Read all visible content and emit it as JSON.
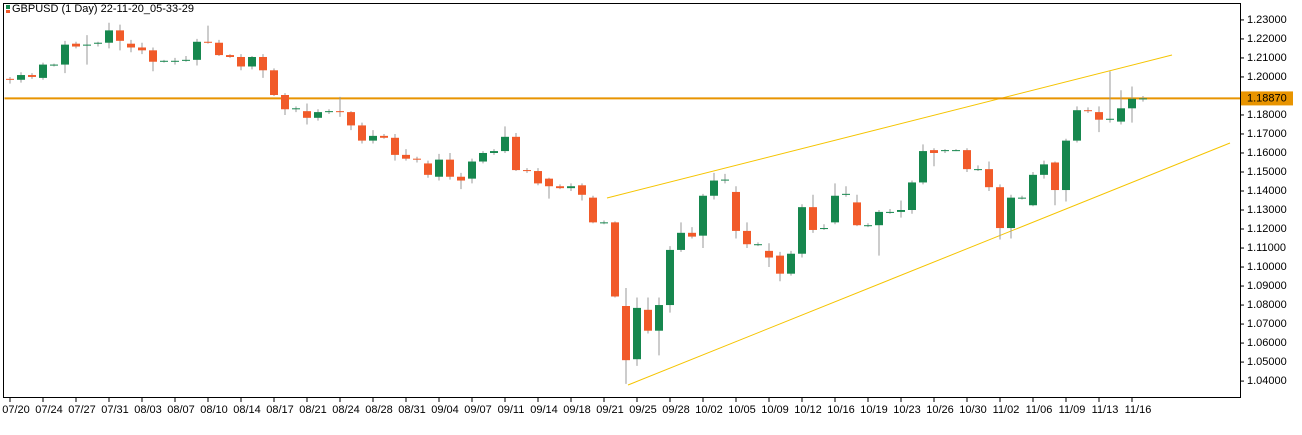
{
  "chart_data": {
    "type": "candlestick",
    "title": "GBPUSD (1 Day) 22-11-20_05-33-29",
    "categories": [
      "07/20",
      null,
      null,
      "07/24",
      null,
      null,
      "07/27",
      null,
      null,
      "07/31",
      null,
      null,
      "08/03",
      null,
      null,
      "08/07",
      null,
      null,
      "08/10",
      null,
      null,
      "08/14",
      null,
      null,
      "08/17",
      null,
      null,
      "08/21",
      null,
      null,
      "08/24",
      null,
      null,
      "08/28",
      null,
      null,
      "08/31",
      null,
      null,
      "09/04",
      null,
      null,
      "09/07",
      null,
      null,
      "09/11",
      null,
      null,
      "09/14",
      null,
      null,
      "09/18",
      null,
      null,
      "09/21",
      null,
      null,
      "09/25",
      null,
      null,
      "09/28",
      null,
      null,
      "10/02",
      null,
      null,
      "10/05",
      null,
      null,
      "10/09",
      null,
      null,
      "10/12",
      null,
      null,
      "10/16",
      null,
      null,
      "10/19",
      null,
      null,
      "10/23",
      null,
      null,
      "10/26",
      null,
      null,
      "10/30",
      null,
      null,
      "11/02",
      null,
      null,
      "11/06",
      null,
      null,
      "11/09",
      null,
      null,
      "11/13",
      null,
      null,
      "11/16",
      null
    ],
    "open": [
      1.199,
      1.1985,
      1.201,
      1.1995,
      1.2065,
      1.2065,
      1.2175,
      1.2165,
      1.2175,
      1.218,
      1.2245,
      1.2175,
      1.2155,
      1.214,
      1.208,
      1.2085,
      1.2085,
      1.209,
      1.2185,
      1.218,
      1.2115,
      1.2105,
      1.2055,
      1.2105,
      1.2035,
      1.1905,
      1.183,
      1.182,
      1.1785,
      1.1815,
      1.182,
      1.1815,
      1.1745,
      1.1665,
      1.169,
      1.168,
      1.159,
      1.157,
      1.1545,
      1.1475,
      1.1565,
      1.1475,
      1.1465,
      1.1555,
      1.16,
      1.161,
      1.1685,
      1.151,
      1.1505,
      1.1465,
      1.1425,
      1.1415,
      1.143,
      1.1365,
      1.1235,
      1.1235,
      1.0795,
      1.0515,
      1.0775,
      1.0665,
      1.08,
      1.109,
      1.118,
      1.1165,
      1.1375,
      1.1455,
      1.1395,
      1.119,
      1.112,
      1.1085,
      1.106,
      1.0965,
      1.107,
      1.1315,
      1.1205,
      1.1235,
      1.138,
      1.134,
      1.122,
      1.122,
      1.129,
      1.129,
      1.13,
      1.1445,
      1.1615,
      1.161,
      1.1615,
      1.1615,
      1.1515,
      1.1515,
      1.142,
      1.1205,
      1.1365,
      1.1325,
      1.1485,
      1.155,
      1.1405,
      1.1665,
      1.1825,
      1.1815,
      1.1775,
      1.1765,
      1.1835,
      1.1885
    ],
    "high": [
      1.2,
      1.2025,
      1.202,
      1.2075,
      1.207,
      1.219,
      1.2185,
      1.222,
      1.2185,
      1.2285,
      1.2275,
      1.2195,
      1.218,
      1.2155,
      1.209,
      1.21,
      1.211,
      1.22,
      1.227,
      1.2195,
      1.212,
      1.212,
      1.211,
      1.212,
      1.2045,
      1.1915,
      1.1845,
      1.186,
      1.183,
      1.183,
      1.1895,
      1.182,
      1.176,
      1.172,
      1.17,
      1.17,
      1.162,
      1.158,
      1.156,
      1.1595,
      1.16,
      1.1495,
      1.157,
      1.161,
      1.162,
      1.174,
      1.1705,
      1.152,
      1.152,
      1.147,
      1.1435,
      1.144,
      1.144,
      1.1375,
      1.1245,
      1.124,
      1.089,
      1.084,
      1.084,
      1.084,
      1.111,
      1.1235,
      1.121,
      1.1385,
      1.1495,
      1.149,
      1.1425,
      1.1235,
      1.113,
      1.1125,
      1.108,
      1.1085,
      1.133,
      1.138,
      1.1225,
      1.144,
      1.1425,
      1.138,
      1.123,
      1.13,
      1.1305,
      1.135,
      1.1455,
      1.1645,
      1.1625,
      1.162,
      1.162,
      1.1625,
      1.1535,
      1.1555,
      1.1435,
      1.138,
      1.1375,
      1.15,
      1.156,
      1.1555,
      1.1675,
      1.1845,
      1.184,
      1.1845,
      1.203,
      1.193,
      1.195,
      1.19
    ],
    "low": [
      1.1965,
      1.197,
      1.199,
      1.1985,
      1.2055,
      1.202,
      1.215,
      1.2065,
      1.216,
      1.215,
      1.214,
      1.213,
      1.212,
      1.203,
      1.2075,
      1.2065,
      1.208,
      1.206,
      1.2175,
      1.211,
      1.21,
      1.2035,
      1.204,
      1.1995,
      1.19,
      1.18,
      1.1815,
      1.175,
      1.177,
      1.1805,
      1.179,
      1.172,
      1.165,
      1.165,
      1.1675,
      1.156,
      1.156,
      1.155,
      1.147,
      1.1455,
      1.146,
      1.141,
      1.144,
      1.1545,
      1.159,
      1.16,
      1.1505,
      1.1495,
      1.143,
      1.136,
      1.141,
      1.14,
      1.135,
      1.123,
      1.1225,
      1.084,
      1.0385,
      1.048,
      1.065,
      1.0535,
      1.076,
      1.108,
      1.115,
      1.11,
      1.1355,
      1.144,
      1.115,
      1.11,
      1.111,
      1.1,
      1.0925,
      1.0955,
      1.105,
      1.118,
      1.1195,
      1.1225,
      1.137,
      1.1215,
      1.121,
      1.106,
      1.128,
      1.126,
      1.128,
      1.1435,
      1.153,
      1.16,
      1.161,
      1.15,
      1.1505,
      1.14,
      1.1145,
      1.115,
      1.1355,
      1.132,
      1.1465,
      1.1325,
      1.1345,
      1.1655,
      1.181,
      1.171,
      1.176,
      1.175,
      1.176,
      1.187
    ],
    "close": [
      1.1985,
      1.201,
      1.2,
      1.2065,
      1.2065,
      1.217,
      1.216,
      1.217,
      1.218,
      1.2245,
      1.219,
      1.2155,
      1.214,
      1.208,
      1.2085,
      1.2085,
      1.209,
      1.2185,
      1.218,
      1.2115,
      1.2105,
      1.2055,
      1.2105,
      1.2035,
      1.1905,
      1.183,
      1.1835,
      1.1785,
      1.1815,
      1.182,
      1.1815,
      1.1745,
      1.1665,
      1.169,
      1.168,
      1.159,
      1.157,
      1.1565,
      1.1485,
      1.1565,
      1.1475,
      1.1455,
      1.1555,
      1.16,
      1.161,
      1.1685,
      1.151,
      1.1505,
      1.144,
      1.1425,
      1.1415,
      1.1425,
      1.138,
      1.1235,
      1.1235,
      1.0845,
      1.051,
      1.0785,
      1.0665,
      1.08,
      1.109,
      1.118,
      1.116,
      1.1375,
      1.1455,
      1.146,
      1.119,
      1.112,
      1.112,
      1.105,
      1.0965,
      1.107,
      1.1315,
      1.1195,
      1.1205,
      1.1375,
      1.1385,
      1.122,
      1.122,
      1.129,
      1.129,
      1.13,
      1.1445,
      1.161,
      1.16,
      1.1615,
      1.1615,
      1.1515,
      1.1515,
      1.142,
      1.1205,
      1.1365,
      1.1365,
      1.1485,
      1.154,
      1.1405,
      1.1665,
      1.1825,
      1.182,
      1.1775,
      1.178,
      1.1835,
      1.1885,
      1.1887
    ],
    "up_color": "#16874e",
    "down_color": "#f15a29",
    "ylim": [
      1.0311,
      1.2389
    ],
    "yticks": [
      {
        "value": 1.23,
        "label": "1.23000"
      },
      {
        "value": 1.22,
        "label": "1.22000"
      },
      {
        "value": 1.21,
        "label": "1.21000"
      },
      {
        "value": 1.2,
        "label": "1.20000"
      },
      {
        "value": 1.19,
        "label": "1.19000"
      },
      {
        "value": 1.18,
        "label": "1.18000"
      },
      {
        "value": 1.17,
        "label": "1.17000"
      },
      {
        "value": 1.16,
        "label": "1.16000"
      },
      {
        "value": 1.15,
        "label": "1.15000"
      },
      {
        "value": 1.14,
        "label": "1.14000"
      },
      {
        "value": 1.13,
        "label": "1.13000"
      },
      {
        "value": 1.12,
        "label": "1.12000"
      },
      {
        "value": 1.11,
        "label": "1.11000"
      },
      {
        "value": 1.1,
        "label": "1.10000"
      },
      {
        "value": 1.09,
        "label": "1.09000"
      },
      {
        "value": 1.08,
        "label": "1.08000"
      },
      {
        "value": 1.07,
        "label": "1.07000"
      },
      {
        "value": 1.06,
        "label": "1.06000"
      },
      {
        "value": 1.05,
        "label": "1.05000"
      },
      {
        "value": 1.04,
        "label": "1.04000"
      }
    ],
    "current_price": {
      "value": 1.1887,
      "label": "1.18870"
    },
    "current_price_color": "#e89400"
  }
}
